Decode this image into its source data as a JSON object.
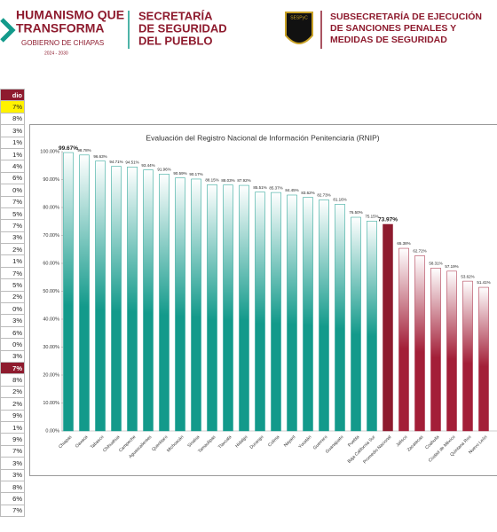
{
  "header": {
    "line1": "HUMANISMO QUE",
    "line2": "TRANSFORMA",
    "gov": "GOBIERNO DE CHIAPAS",
    "years": "2024 - 2030",
    "sec1": "SECRETARÍA",
    "sec2": "DE SEGURIDAD",
    "sec3": "DEL PUEBLO",
    "badge": "SESPyC",
    "sub1": "SUBSECRETARÍA DE EJECUCIÓN",
    "sub2": "DE SANCIONES PENALES Y",
    "sub3": "MEDIDAS DE SEGURIDAD"
  },
  "left_table": {
    "header": "dio",
    "rows": [
      "7%",
      "8%",
      "3%",
      "1%",
      "1%",
      "4%",
      "6%",
      "0%",
      "7%",
      "5%",
      "7%",
      "3%",
      "2%",
      "1%",
      "7%",
      "5%",
      "2%",
      "0%",
      "3%",
      "6%",
      "0%",
      "3%",
      "7%",
      "8%",
      "2%",
      "2%",
      "9%",
      "1%",
      "9%",
      "7%",
      "3%",
      "3%",
      "8%",
      "6%",
      "7%"
    ]
  },
  "chart_data": {
    "type": "bar",
    "title": "Evaluación del Registro Nacional de Información Penitenciaria (RNIP)",
    "categories": [
      "Chiapas",
      "Oaxaca",
      "Tabasco",
      "Chihuahua",
      "Campeche",
      "Aguascalientes",
      "Querétaro",
      "Michoacán",
      "Sinaloa",
      "Tamaulipas",
      "Tlaxcala",
      "Hidalgo",
      "Durango",
      "Colima",
      "Nayarit",
      "Yucatán",
      "Guerrero",
      "Guanajuato",
      "Puebla",
      "Baja California Sur",
      "Promedio Nacional",
      "Jalisco",
      "Zacatecas",
      "Coahuila",
      "Ciudad de México",
      "Quintana Roo",
      "Nuevo León"
    ],
    "values": [
      99.67,
      98.78,
      96.63,
      94.71,
      94.51,
      93.44,
      91.96,
      90.59,
      90.17,
      88.15,
      88.03,
      87.92,
      85.51,
      85.37,
      84.45,
      83.62,
      82.73,
      81.16,
      76.5,
      75.15,
      73.97,
      65.38,
      62.72,
      58.31,
      57.19,
      53.62,
      51.41
    ],
    "value_labels": [
      "99.67%",
      "98.78%",
      "96.63%",
      "94.71%",
      "94.51%",
      "93.44%",
      "91.96%",
      "90.59%",
      "90.17%",
      "88.15%",
      "88.03%",
      "87.92%",
      "85.51%",
      "85.37%",
      "84.45%",
      "83.62%",
      "82.73%",
      "81.16%",
      "76.50%",
      "75.15%",
      "73.97%",
      "65.38%",
      "62.72%",
      "58.31%",
      "57.19%",
      "53.62%",
      "51.41%"
    ],
    "colors": [
      "#139a8b",
      "#139a8b",
      "#139a8b",
      "#139a8b",
      "#139a8b",
      "#139a8b",
      "#139a8b",
      "#139a8b",
      "#139a8b",
      "#139a8b",
      "#139a8b",
      "#139a8b",
      "#139a8b",
      "#139a8b",
      "#139a8b",
      "#139a8b",
      "#139a8b",
      "#139a8b",
      "#139a8b",
      "#139a8b",
      "#8e1b2e",
      "#a31f38",
      "#a31f38",
      "#a31f38",
      "#a31f38",
      "#a31f38",
      "#a31f38"
    ],
    "ylim": [
      0,
      100
    ],
    "yticks": [
      {
        "value": 0,
        "label": "0.00%"
      },
      {
        "value": 10,
        "label": "10.00%"
      },
      {
        "value": 20,
        "label": "20.00%"
      },
      {
        "value": 30,
        "label": "30.00%"
      },
      {
        "value": 40,
        "label": "40.00%"
      },
      {
        "value": 50,
        "label": "50.00%"
      },
      {
        "value": 60,
        "label": "60.00%"
      },
      {
        "value": 70,
        "label": "70.00%"
      },
      {
        "value": 80,
        "label": "80.00%"
      },
      {
        "value": 90,
        "label": "90.00%"
      },
      {
        "value": 100,
        "label": "100.00%"
      }
    ]
  }
}
